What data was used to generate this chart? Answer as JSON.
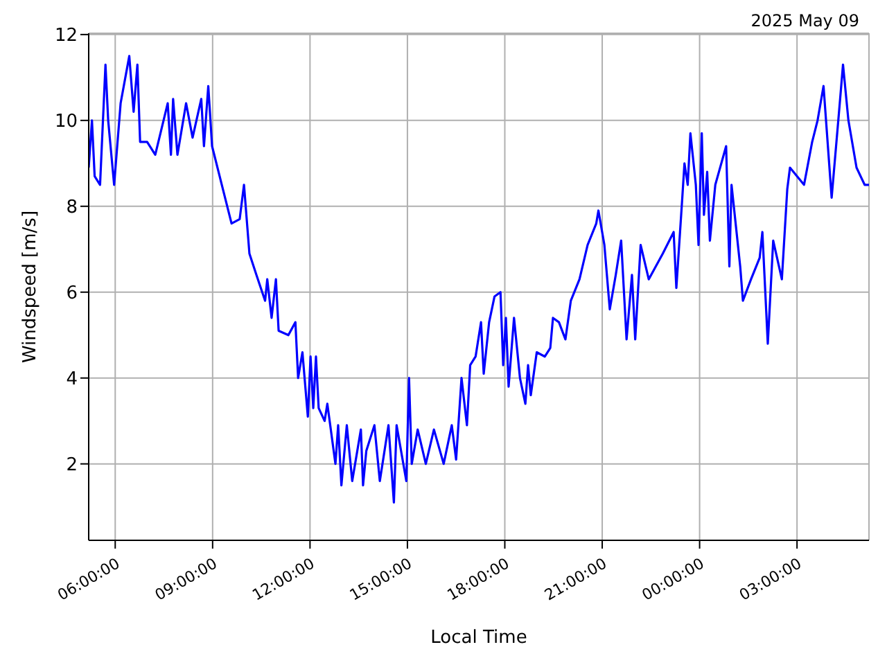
{
  "chart_data": {
    "type": "line",
    "title": "2025 May 09",
    "xlabel": "Local Time",
    "ylabel": "Windspeed [m/s]",
    "x": [
      "2025-05-09T05:11",
      "2025-05-09T05:17",
      "2025-05-09T05:22",
      "2025-05-09T05:32",
      "2025-05-09T05:42",
      "2025-05-09T05:47",
      "2025-05-09T05:58",
      "2025-05-09T06:10",
      "2025-05-09T06:26",
      "2025-05-09T06:34",
      "2025-05-09T06:41",
      "2025-05-09T06:46",
      "2025-05-09T06:59",
      "2025-05-09T07:14",
      "2025-05-09T07:37",
      "2025-05-09T07:43",
      "2025-05-09T07:47",
      "2025-05-09T07:55",
      "2025-05-09T08:11",
      "2025-05-09T08:23",
      "2025-05-09T08:39",
      "2025-05-09T08:44",
      "2025-05-09T08:52",
      "2025-05-09T08:59",
      "2025-05-09T09:17",
      "2025-05-09T09:35",
      "2025-05-09T09:50",
      "2025-05-09T09:58",
      "2025-05-09T10:08",
      "2025-05-09T10:21",
      "2025-05-09T10:37",
      "2025-05-09T10:41",
      "2025-05-09T10:49",
      "2025-05-09T10:57",
      "2025-05-09T11:02",
      "2025-05-09T11:20",
      "2025-05-09T11:33",
      "2025-05-09T11:38",
      "2025-05-09T11:46",
      "2025-05-09T11:56",
      "2025-05-09T12:01",
      "2025-05-09T12:06",
      "2025-05-09T12:11",
      "2025-05-09T12:16",
      "2025-05-09T12:27",
      "2025-05-09T12:32",
      "2025-05-09T12:47",
      "2025-05-09T12:52",
      "2025-05-09T12:58",
      "2025-05-09T13:08",
      "2025-05-09T13:18",
      "2025-05-09T13:34",
      "2025-05-09T13:38",
      "2025-05-09T13:44",
      "2025-05-09T13:59",
      "2025-05-09T14:09",
      "2025-05-09T14:25",
      "2025-05-09T14:35",
      "2025-05-09T14:40",
      "2025-05-09T14:58",
      "2025-05-09T15:03",
      "2025-05-09T15:08",
      "2025-05-09T15:19",
      "2025-05-09T15:34",
      "2025-05-09T15:49",
      "2025-05-09T16:07",
      "2025-05-09T16:22",
      "2025-05-09T16:30",
      "2025-05-09T16:40",
      "2025-05-09T16:50",
      "2025-05-09T16:56",
      "2025-05-09T17:06",
      "2025-05-09T17:16",
      "2025-05-09T17:21",
      "2025-05-09T17:31",
      "2025-05-09T17:41",
      "2025-05-09T17:52",
      "2025-05-09T17:57",
      "2025-05-09T18:02",
      "2025-05-09T18:07",
      "2025-05-09T18:17",
      "2025-05-09T18:28",
      "2025-05-09T18:38",
      "2025-05-09T18:43",
      "2025-05-09T18:48",
      "2025-05-09T18:59",
      "2025-05-09T19:14",
      "2025-05-09T19:24",
      "2025-05-09T19:29",
      "2025-05-09T19:40",
      "2025-05-09T19:52",
      "2025-05-09T20:02",
      "2025-05-09T20:18",
      "2025-05-09T20:33",
      "2025-05-09T20:49",
      "2025-05-09T20:53",
      "2025-05-09T21:04",
      "2025-05-09T21:14",
      "2025-05-09T21:25",
      "2025-05-09T21:35",
      "2025-05-09T21:45",
      "2025-05-09T21:55",
      "2025-05-09T22:01",
      "2025-05-09T22:11",
      "2025-05-09T22:26",
      "2025-05-09T22:52",
      "2025-05-09T23:12",
      "2025-05-09T23:17",
      "2025-05-09T23:28",
      "2025-05-09T23:32",
      "2025-05-09T23:38",
      "2025-05-09T23:43",
      "2025-05-09T23:53",
      "2025-05-09T23:58",
      "2025-05-10T00:04",
      "2025-05-10T00:08",
      "2025-05-10T00:14",
      "2025-05-10T00:19",
      "2025-05-10T00:29",
      "2025-05-10T00:49",
      "2025-05-10T00:55",
      "2025-05-10T00:59",
      "2025-05-10T01:15",
      "2025-05-10T01:20",
      "2025-05-10T01:35",
      "2025-05-10T01:51",
      "2025-05-10T01:56",
      "2025-05-10T02:06",
      "2025-05-10T02:16",
      "2025-05-10T02:32",
      "2025-05-10T02:42",
      "2025-05-10T02:47",
      "2025-05-10T03:13",
      "2025-05-10T03:28",
      "2025-05-10T03:38",
      "2025-05-10T03:49",
      "2025-05-10T04:04",
      "2025-05-10T04:19",
      "2025-05-10T04:25",
      "2025-05-10T04:35",
      "2025-05-10T04:50",
      "2025-05-10T05:05",
      "2025-05-10T05:13"
    ],
    "series": [
      {
        "color": "#0000ff",
        "values": [
          8.9,
          10.0,
          8.7,
          8.5,
          11.3,
          10.0,
          8.5,
          10.4,
          11.5,
          10.2,
          11.3,
          9.5,
          9.5,
          9.2,
          10.4,
          9.2,
          10.5,
          9.2,
          10.4,
          9.6,
          10.5,
          9.4,
          10.8,
          9.4,
          8.5,
          7.6,
          7.7,
          8.5,
          6.9,
          6.4,
          5.8,
          6.3,
          5.4,
          6.3,
          5.1,
          5.0,
          5.3,
          4.0,
          4.6,
          3.1,
          4.5,
          3.3,
          4.5,
          3.3,
          3.0,
          3.4,
          2.0,
          2.9,
          1.5,
          2.9,
          1.6,
          2.8,
          1.5,
          2.3,
          2.9,
          1.6,
          2.9,
          1.1,
          2.9,
          1.6,
          4.0,
          2.0,
          2.8,
          2.0,
          2.8,
          2.0,
          2.9,
          2.1,
          4.0,
          2.9,
          4.3,
          4.5,
          5.3,
          4.1,
          5.3,
          5.9,
          6.0,
          4.3,
          5.4,
          3.8,
          5.4,
          4.0,
          3.4,
          4.3,
          3.6,
          4.6,
          4.5,
          4.7,
          5.4,
          5.3,
          4.9,
          5.8,
          6.3,
          7.1,
          7.6,
          7.9,
          7.1,
          5.6,
          6.4,
          7.2,
          4.9,
          6.4,
          4.9,
          7.1,
          6.3,
          6.9,
          7.4,
          6.1,
          8.2,
          9.0,
          8.5,
          9.7,
          8.5,
          7.1,
          9.7,
          7.8,
          8.8,
          7.2,
          8.5,
          9.4,
          6.6,
          8.5,
          6.6,
          5.8,
          6.3,
          6.8,
          7.4,
          4.8,
          7.2,
          6.3,
          8.4,
          8.9,
          8.5,
          9.5,
          10.0,
          10.8,
          8.2,
          10.4,
          11.3,
          10.0,
          8.9,
          8.5,
          8.5
        ]
      }
    ],
    "xlim": [
      "2025-05-09T05:11",
      "2025-05-10T05:13"
    ],
    "xticks": [
      {
        "value": "2025-05-09T06:00",
        "label": "06:00:00"
      },
      {
        "value": "2025-05-09T09:00",
        "label": "09:00:00"
      },
      {
        "value": "2025-05-09T12:00",
        "label": "12:00:00"
      },
      {
        "value": "2025-05-09T15:00",
        "label": "15:00:00"
      },
      {
        "value": "2025-05-09T18:00",
        "label": "18:00:00"
      },
      {
        "value": "2025-05-09T21:00",
        "label": "21:00:00"
      },
      {
        "value": "2025-05-10T00:00",
        "label": "00:00:00"
      },
      {
        "value": "2025-05-10T03:00",
        "label": "03:00:00"
      }
    ],
    "ylim": [
      0.22,
      12.03
    ],
    "yticks": [
      2,
      4,
      6,
      8,
      10,
      12
    ],
    "grid": true,
    "marker": "none",
    "line_style": "solid",
    "legend": false
  }
}
